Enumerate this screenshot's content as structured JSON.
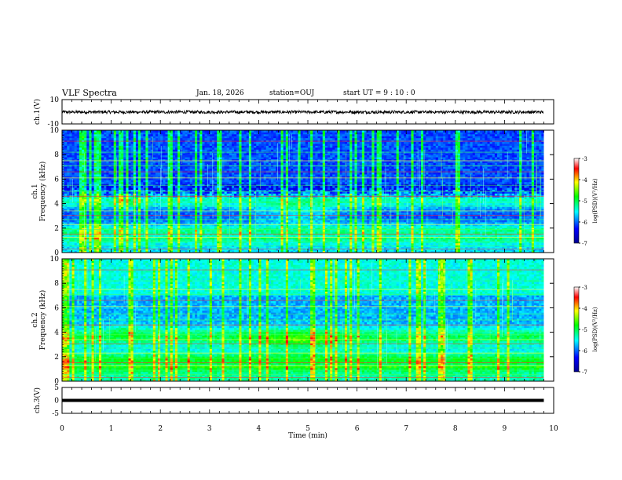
{
  "header": {
    "title": "VLF Spectra",
    "date": "Jan. 18, 2026",
    "station": "station=OUJ",
    "start_ut": "start UT =  9 : 10 : 0"
  },
  "colors": {
    "colormap": [
      "#00008f",
      "#0000ff",
      "#00ffff",
      "#00ff00",
      "#ffff00",
      "#ff0000",
      "#ffffff"
    ],
    "trace": "#000000",
    "frame": "#000000"
  },
  "chart_data": [
    {
      "type": "line",
      "name": "ch1-waveform",
      "ylabel": "ch.1(V)",
      "ylim": [
        -10,
        10
      ],
      "y_ticks": [
        "10",
        "-10"
      ],
      "x": [
        0,
        9.8
      ],
      "approx_band": [
        -1.5,
        1.0
      ],
      "level": -0.2
    },
    {
      "type": "heatmap",
      "name": "ch1-spectrogram",
      "ylabel_top": "ch.1",
      "ylabel": "Frequency (kHz)",
      "ylim": [
        0,
        10
      ],
      "y_ticks": [
        "0",
        "2",
        "4",
        "6",
        "8",
        "10"
      ],
      "xlim": [
        0,
        10
      ],
      "data_until_min": 9.8,
      "colorbar": {
        "label": "log(PSD)(V²/Hz)",
        "range": [
          -7,
          -3
        ],
        "ticks": [
          "-3",
          "-4",
          "-5",
          "-6",
          "-7"
        ]
      }
    },
    {
      "type": "heatmap",
      "name": "ch2-spectrogram",
      "ylabel_top": "ch.2",
      "ylabel": "Frequency (kHz)",
      "ylim": [
        0,
        10
      ],
      "y_ticks": [
        "0",
        "2",
        "4",
        "6",
        "8",
        "10"
      ],
      "xlim": [
        0,
        10
      ],
      "data_until_min": 9.8,
      "colorbar": {
        "label": "log(PSD)(V²/Hz)",
        "range": [
          -7,
          -3
        ],
        "ticks": [
          "-3",
          "-4",
          "-5",
          "-6",
          "-7"
        ]
      }
    },
    {
      "type": "line",
      "name": "ch3-waveform",
      "ylabel": "ch.3(V)",
      "ylim": [
        -5,
        5
      ],
      "y_ticks": [
        "5",
        "0",
        "-5"
      ],
      "x": [
        0,
        9.8
      ],
      "level": 0
    }
  ],
  "x_axis": {
    "label": "Time (min)",
    "range": [
      0,
      10
    ],
    "ticks": [
      "0",
      "1",
      "2",
      "3",
      "4",
      "5",
      "6",
      "7",
      "8",
      "9",
      "10"
    ]
  }
}
